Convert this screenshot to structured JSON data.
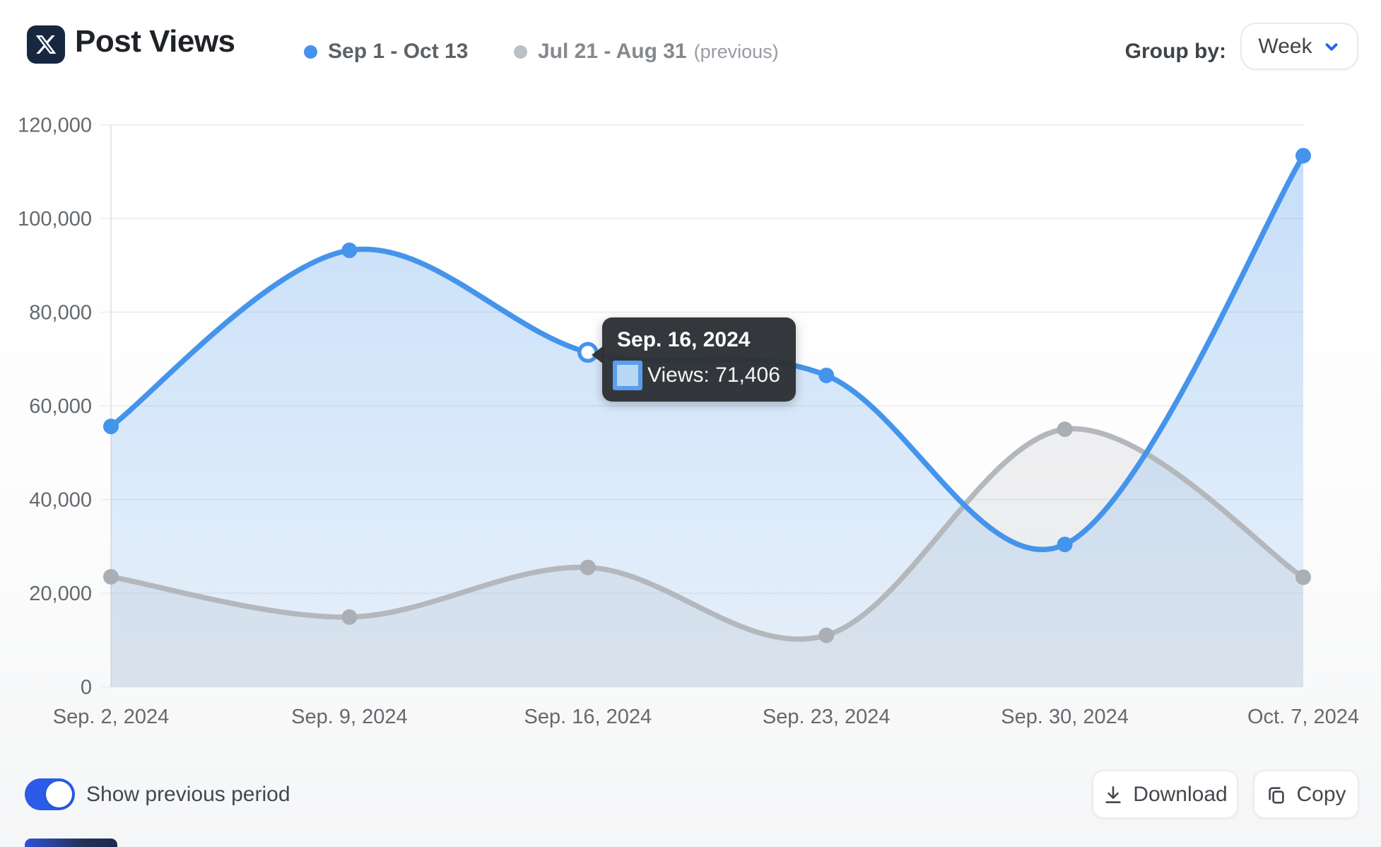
{
  "header": {
    "title": "Post Views",
    "legend": [
      {
        "label": "Sep 1 - Oct 13",
        "color": "#4693ee",
        "text_color": "#5d6267"
      },
      {
        "label": "Jul 21 - Aug 31",
        "color": "#bac0c5",
        "text_color": "#85898e",
        "suffix": "(previous)"
      }
    ],
    "group_by_label": "Group by:",
    "group_by_value": "Week"
  },
  "colors": {
    "accent_blue": "#2b5be8",
    "chevron_blue": "#2563eb",
    "grid": "#e9ebee",
    "axis_line": "#e4e6e9",
    "axis_text": "#64696e"
  },
  "chart_data": {
    "type": "line",
    "title": "Post Views",
    "group_by": "Week",
    "x_labels": [
      "Sep. 2, 2024",
      "Sep. 9, 2024",
      "Sep. 16, 2024",
      "Sep. 23, 2024",
      "Sep. 30, 2024",
      "Oct. 7, 2024"
    ],
    "y_tick_labels": [
      "0",
      "20,000",
      "40,000",
      "60,000",
      "80,000",
      "100,000",
      "120,000"
    ],
    "ylim": [
      0,
      120000
    ],
    "y_step": 20000,
    "grid": true,
    "legend_position": "top",
    "series": [
      {
        "name": "Sep 1 - Oct 13",
        "line_color": "#4594ec",
        "point_color": "#4594ec",
        "fill_top": "rgba(69,148,236,0.30)",
        "fill_bottom": "rgba(69,148,236,0.10)",
        "values": [
          55600,
          93200,
          71406,
          66500,
          30400,
          113400
        ]
      },
      {
        "name": "Jul 21 - Aug 31 (previous)",
        "line_color": "#b4b8bd",
        "point_color": "#aaafb5",
        "fill_top": "rgba(158,163,170,0.16)",
        "fill_bottom": "rgba(158,163,170,0.16)",
        "values": [
          23500,
          14900,
          25500,
          11000,
          55000,
          23400
        ]
      }
    ],
    "highlight": {
      "series_index": 0,
      "point_index": 2
    }
  },
  "tooltip": {
    "title": "Sep. 16, 2024",
    "views_text": "Views: 71,406",
    "swatch_border": "#5b9ded",
    "swatch_fill": "#b7d7f3"
  },
  "footer": {
    "toggle_label": "Show previous period",
    "toggle_on": true,
    "download_label": "Download",
    "copy_label": "Copy"
  }
}
